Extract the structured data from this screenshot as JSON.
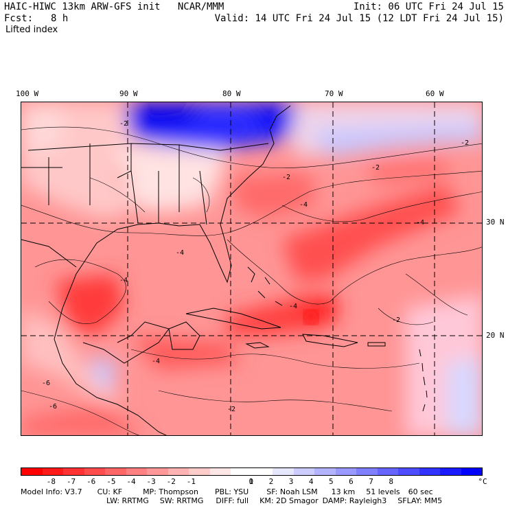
{
  "header": {
    "title": "HAIC-HIWC 13km ARW-GFS init   NCAR/MMM",
    "fcst_label": "Fcst:",
    "fcst_value": "8 h",
    "init": "Init: 06 UTC Fri 24 Jul 15",
    "valid": "Valid: 14 UTC Fri 24 Jul 15 (12 LDT Fri 24 Jul 15)",
    "field": "Lifted index"
  },
  "map": {
    "lon_labels": [
      "100 W",
      "90 W",
      "80 W",
      "70 W",
      "60 W"
    ],
    "lat_labels": [
      "30 N",
      "20 N"
    ],
    "contour_labels": [
      "-2",
      "-2",
      "-2",
      "-2",
      "-4",
      "-4",
      "-4",
      "-4",
      "-6",
      "-6",
      "-4",
      "-2",
      "-4",
      "-2"
    ]
  },
  "colorbar": {
    "colors": [
      "#ff0000",
      "#ff1a1a",
      "#ff3333",
      "#ff4d4d",
      "#ff6666",
      "#ff8080",
      "#ff9999",
      "#ffb3b3",
      "#ffcccc",
      "#ffe6e6",
      "#ffffff",
      "#ffffff",
      "#e6e6ff",
      "#ccccff",
      "#b3b3ff",
      "#9999ff",
      "#8080ff",
      "#6666ff",
      "#4d4dff",
      "#3333ff",
      "#1a1aff",
      "#0000ff"
    ],
    "labels": [
      "-8",
      "-7",
      "-6",
      "-5",
      "-4",
      "-3",
      "-2",
      "-1",
      "0",
      "1",
      "2",
      "3",
      "4",
      "5",
      "6",
      "7",
      "8"
    ],
    "unit": "°C"
  },
  "footer": {
    "line1": [
      {
        "k": "Model Info:",
        "v": "V3.7"
      },
      {
        "k": "CU:",
        "v": "KF"
      },
      {
        "k": "MP:",
        "v": "Thompson"
      },
      {
        "k": "PBL:",
        "v": "YSU"
      },
      {
        "k": "SF:",
        "v": "Noah LSM"
      },
      {
        "k": "",
        "v": "13 km"
      },
      {
        "k": "",
        "v": "51 levels"
      },
      {
        "k": "",
        "v": "60 sec"
      }
    ],
    "line2": [
      {
        "k": "LW:",
        "v": "RRTMG"
      },
      {
        "k": "SW:",
        "v": "RRTMG"
      },
      {
        "k": "DIFF:",
        "v": "full"
      },
      {
        "k": "KM:",
        "v": "2D Smagor"
      },
      {
        "k": "DAMP:",
        "v": "Rayleigh3"
      },
      {
        "k": "SFLAY:",
        "v": "MM5"
      }
    ]
  }
}
